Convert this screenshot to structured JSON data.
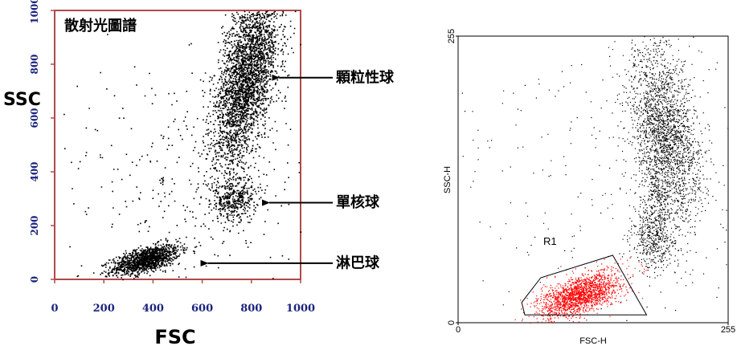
{
  "chart_data": [
    {
      "type": "scatter",
      "title": "散射光圖譜",
      "xlabel": "FSC",
      "ylabel": "SSC",
      "xlim": [
        0,
        1000
      ],
      "ylim": [
        0,
        1000
      ],
      "x_ticks": [
        "0",
        "200",
        "400",
        "600",
        "800",
        "1000"
      ],
      "y_ticks": [
        "0",
        "200",
        "400",
        "600",
        "800",
        "1000"
      ],
      "frame_color": "#b04a4a",
      "point_color": "#000000",
      "series": [
        {
          "population": "lymphocytes",
          "center": [
            370,
            75
          ],
          "spread": [
            70,
            22
          ],
          "tilt": 0.25,
          "count": 1300
        },
        {
          "population": "monocytes",
          "center": [
            730,
            300
          ],
          "spread": [
            45,
            40
          ],
          "tilt": 0.3,
          "count": 400
        },
        {
          "population": "granulocytes",
          "center": [
            780,
            760
          ],
          "spread": [
            55,
            175
          ],
          "tilt": 2.9,
          "count": 3200
        },
        {
          "population": "debris",
          "center": [
            560,
            380
          ],
          "spread": [
            260,
            220
          ],
          "tilt": 0,
          "count": 350
        }
      ],
      "annotations": [
        {
          "label": "顆粒性球",
          "arrow_to": [
            880,
            750
          ]
        },
        {
          "label": "單核球",
          "arrow_to": [
            840,
            285
          ]
        },
        {
          "label": "淋巴球",
          "arrow_to": [
            590,
            60
          ]
        }
      ]
    },
    {
      "type": "scatter",
      "xlabel": "FSC-H",
      "ylabel": "SSC-H",
      "xlim": [
        0,
        255
      ],
      "ylim": [
        0,
        255
      ],
      "x_ticks": [
        "0",
        "255"
      ],
      "y_ticks": [
        "0",
        "255"
      ],
      "point_color": "#000000",
      "gated_color": "#ff0000",
      "series": [
        {
          "population": "lymphocytes",
          "center": [
            115,
            25
          ],
          "spread": [
            20,
            8
          ],
          "tilt": 0.35,
          "count": 1800,
          "gated": true
        },
        {
          "population": "monocytes",
          "center": [
            185,
            75
          ],
          "spread": [
            11,
            15
          ],
          "tilt": 0.2,
          "count": 450
        },
        {
          "population": "granulocytes",
          "center": [
            195,
            170
          ],
          "spread": [
            15,
            40
          ],
          "tilt": 3.35,
          "count": 2200
        },
        {
          "population": "column",
          "center": [
            188,
            115
          ],
          "spread": [
            7,
            22
          ],
          "tilt": 0,
          "count": 250
        },
        {
          "population": "debris",
          "center": [
            150,
            130
          ],
          "spread": [
            85,
            90
          ],
          "tilt": 0,
          "count": 320
        }
      ],
      "gate": {
        "label": "R1",
        "polygon": [
          [
            63,
            7
          ],
          [
            60,
            18
          ],
          [
            78,
            40
          ],
          [
            146,
            60
          ],
          [
            178,
            7
          ]
        ]
      }
    }
  ]
}
